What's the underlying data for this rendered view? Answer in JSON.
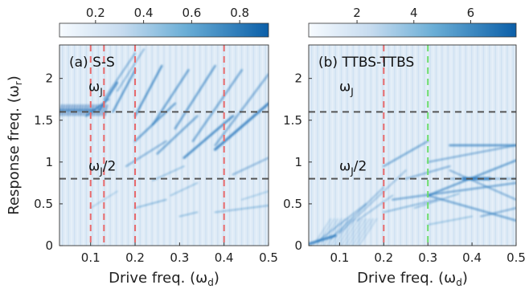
{
  "chart_data": [
    {
      "type": "heatmap",
      "panel_label": "(a) S-S",
      "xlabel": "Drive freq. (ω",
      "xlabel_sub": "d",
      "xlabel_close": ")",
      "ylabel": "Response freq. (ω",
      "ylabel_sub": "r",
      "ylabel_close": ")",
      "xlim": [
        0.03,
        0.5
      ],
      "ylim": [
        0,
        2.4
      ],
      "xticks": [
        0.1,
        0.2,
        0.3,
        0.4,
        0.5
      ],
      "xtick_labels": [
        "0.1",
        "0.2",
        "0.3",
        "0.4",
        "0.5"
      ],
      "yticks": [
        0,
        0.5,
        1,
        1.5,
        2
      ],
      "ytick_labels": [
        "0",
        "0.5",
        "1",
        "1.5",
        "2"
      ],
      "colorbar_ticks": [
        0.2,
        0.4,
        0.6,
        0.8
      ],
      "colorbar_tick_labels": [
        "0.2",
        "0.4",
        "0.6",
        "0.8"
      ],
      "colorbar_range": [
        0.05,
        0.92
      ],
      "hlines": [
        {
          "y": 1.6,
          "label": "ω",
          "label_sub": "J",
          "label_suffix": "",
          "color": "#555555"
        },
        {
          "y": 0.8,
          "label": "ω",
          "label_sub": "J",
          "label_suffix": "/2",
          "color": "#555555"
        }
      ],
      "vlines": [
        {
          "x": 0.1,
          "color": "#e8696b"
        },
        {
          "x": 0.13,
          "color": "#e8696b"
        },
        {
          "x": 0.2,
          "color": "#e8696b"
        },
        {
          "x": 0.4,
          "color": "#e8696b"
        }
      ]
    },
    {
      "type": "heatmap",
      "panel_label": "(b) TTBS-TTBS",
      "xlabel": "Drive freq. (ω",
      "xlabel_sub": "d",
      "xlabel_close": ")",
      "xlim": [
        0.03,
        0.5
      ],
      "ylim": [
        0,
        2.4
      ],
      "xticks": [
        0.1,
        0.2,
        0.3,
        0.4,
        0.5
      ],
      "xtick_labels": [
        "0.1",
        "0.2",
        "0.3",
        "0.4",
        "0.5"
      ],
      "yticks": [
        0,
        0.5,
        1,
        1.5,
        2
      ],
      "ytick_labels": [
        "0",
        "0.5",
        "1",
        "1.5",
        "2"
      ],
      "colorbar_ticks": [
        2,
        4,
        6
      ],
      "colorbar_tick_labels": [
        "2",
        "4",
        "6"
      ],
      "colorbar_range": [
        0.3,
        7.6
      ],
      "hlines": [
        {
          "y": 1.6,
          "label": "ω",
          "label_sub": "J",
          "label_suffix": "",
          "color": "#555555"
        },
        {
          "y": 0.8,
          "label": "ω",
          "label_sub": "J",
          "label_suffix": "/2",
          "color": "#555555"
        }
      ],
      "vlines": [
        {
          "x": 0.2,
          "color": "#e8696b"
        },
        {
          "x": 0.3,
          "color": "#6bdc6b"
        }
      ]
    }
  ],
  "colors": {
    "cmap_low": "#eef5fc",
    "cmap_mid": "#9cc6e6",
    "cmap_high": "#0a62ac",
    "background": "#deeaf6"
  }
}
